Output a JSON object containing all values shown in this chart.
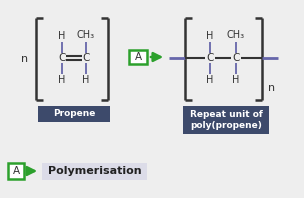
{
  "bg_color": "#eeeeee",
  "dark_blue": "#3d4a6b",
  "green": "#2ca02c",
  "bond_color": "#6666aa",
  "text_color": "#333333",
  "legend_bg": "#dcdce8",
  "propene_label": "Propene",
  "repeat_label": "Repeat unit of\npoly(propene)",
  "polymerisation_label": "Polymerisation",
  "n_label": "n",
  "a_label": "A",
  "c_label": "C",
  "h_label": "H",
  "ch3_label": "CH₃"
}
